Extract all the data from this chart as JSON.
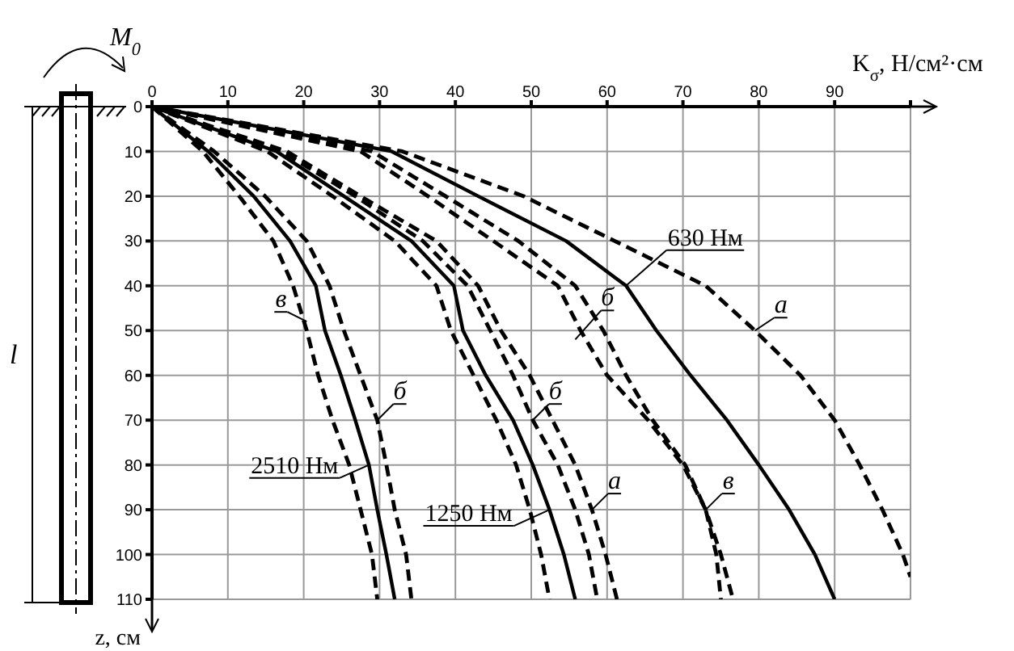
{
  "chart_data": {
    "type": "line",
    "xlabel": "K$_{σ}$, Н/см²·см",
    "ylabel": "z, см",
    "xlim": [
      0,
      100
    ],
    "xticks": [
      0,
      10,
      20,
      30,
      40,
      50,
      60,
      70,
      80,
      90,
      {
        "value": 100,
        "label": null
      }
    ],
    "ylim": [
      110,
      0
    ],
    "yticks": [
      0,
      10,
      20,
      30,
      40,
      50,
      60,
      70,
      80,
      90,
      100,
      110
    ],
    "grid": true,
    "marker": "none",
    "series": [
      {
        "color": "#000000",
        "line_style": "solid",
        "x": [
          0,
          31.6,
          43,
          54.6,
          62.5,
          66.5,
          71,
          75.8,
          80,
          84,
          87.4,
          90
        ],
        "values": [
          0,
          10,
          20,
          30,
          40,
          50,
          60,
          70,
          80,
          90,
          100,
          110
        ]
      },
      {
        "color": "#000000",
        "line_style": "dashed",
        "x": [
          0,
          33,
          49,
          61,
          73,
          79.5,
          85.5,
          90,
          93.3,
          96.3,
          99,
          100
        ],
        "values": [
          0,
          10,
          20,
          30,
          40,
          50,
          60,
          70,
          80,
          90,
          100,
          105
        ]
      },
      {
        "color": "#000000",
        "line_style": "dashed",
        "x": [
          0,
          29,
          38.7,
          48.3,
          55.8,
          59.5,
          62.5,
          66,
          70.3,
          73,
          74.4,
          75
        ],
        "values": [
          0,
          10,
          20,
          30,
          40,
          50,
          60,
          70,
          80,
          90,
          100,
          110
        ]
      },
      {
        "color": "#000000",
        "line_style": "dashed",
        "x": [
          0,
          27.5,
          36.4,
          45,
          53.5,
          56.5,
          60,
          65.4,
          70,
          73,
          75,
          76.6
        ],
        "values": [
          0,
          10,
          20,
          30,
          40,
          50,
          60,
          70,
          80,
          90,
          100,
          110
        ]
      },
      {
        "color": "#000000",
        "line_style": "solid",
        "x": [
          0,
          16.4,
          25.3,
          34.2,
          39.8,
          41,
          44,
          47.6,
          50.2,
          52.4,
          54.3,
          55.8
        ],
        "values": [
          0,
          10,
          20,
          30,
          40,
          50,
          60,
          70,
          80,
          90,
          100,
          110
        ]
      },
      {
        "color": "#000000",
        "line_style": "dashed",
        "x": [
          0,
          15.2,
          23.8,
          32,
          37.5,
          39.4,
          42.4,
          45.4,
          48,
          49.8,
          51.3,
          52.4
        ],
        "values": [
          0,
          10,
          20,
          30,
          40,
          50,
          60,
          70,
          80,
          90,
          100,
          110
        ]
      },
      {
        "color": "#000000",
        "line_style": "dashed",
        "x": [
          0,
          17.1,
          26.8,
          35.7,
          41.6,
          44.6,
          47.6,
          50.2,
          53.5,
          55.8,
          57.6,
          58.7
        ],
        "values": [
          0,
          10,
          20,
          30,
          40,
          50,
          60,
          70,
          80,
          90,
          100,
          110
        ]
      },
      {
        "color": "#000000",
        "line_style": "dashed",
        "x": [
          0,
          17.8,
          27.5,
          37.5,
          43,
          46,
          49.8,
          52.8,
          55.8,
          58,
          59.8,
          61.3
        ],
        "values": [
          0,
          10,
          20,
          30,
          40,
          50,
          60,
          70,
          80,
          90,
          100,
          110
        ]
      },
      {
        "color": "#000000",
        "line_style": "solid",
        "x": [
          0,
          7.4,
          13.4,
          18.2,
          21.6,
          22.8,
          24.9,
          26.8,
          28.6,
          29.7,
          30.9,
          32
        ],
        "values": [
          0,
          10,
          20,
          30,
          40,
          50,
          60,
          70,
          80,
          90,
          100,
          110
        ]
      },
      {
        "color": "#000000",
        "line_style": "dashed",
        "x": [
          0,
          6.7,
          11.5,
          16,
          18.6,
          20.4,
          21.9,
          23.8,
          26,
          27.5,
          29,
          29.7
        ],
        "values": [
          0,
          10,
          20,
          30,
          40,
          50,
          60,
          70,
          80,
          90,
          100,
          110
        ]
      },
      {
        "color": "#000000",
        "line_style": "dashed",
        "x": [
          0,
          8.2,
          14.9,
          20.4,
          23.4,
          25.3,
          27.5,
          29.7,
          30.9,
          32,
          33.5,
          34.2
        ],
        "values": [
          0,
          10,
          20,
          30,
          40,
          50,
          60,
          70,
          80,
          90,
          100,
          110
        ]
      }
    ],
    "annotations": [
      {
        "text": "630 Нм",
        "x": 62.5,
        "y": 40
      },
      {
        "text": "1250 Нм",
        "x": 52.4,
        "y": 90
      },
      {
        "text": "2510 Нм",
        "x": 28.6,
        "y": 80
      },
      {
        "text": "а",
        "x": 79.5,
        "y": 50
      },
      {
        "text": "б",
        "x": 55.8,
        "y": 52
      },
      {
        "text": "в",
        "x": 73,
        "y": 90
      },
      {
        "text": "б",
        "x": 50.2,
        "y": 70
      },
      {
        "text": "а",
        "x": 58,
        "y": 90
      },
      {
        "text": "б",
        "x": 29.7,
        "y": 70
      },
      {
        "text": "в",
        "x": 20.4,
        "y": 48
      },
      "M$_{0}$",
      "l"
    ]
  }
}
